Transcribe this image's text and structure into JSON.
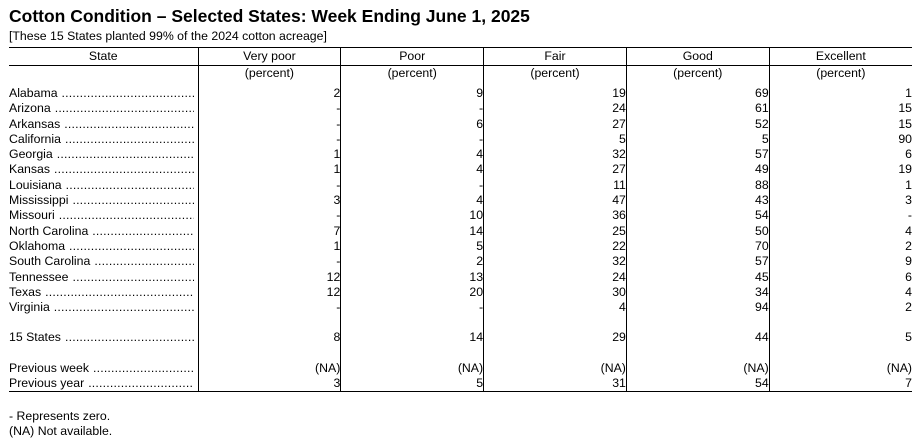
{
  "title": "Cotton Condition – Selected States: Week Ending June 1, 2025",
  "subtitle": "[These 15 States planted 99% of the 2024 cotton acreage]",
  "columns": [
    "State",
    "Very poor",
    "Poor",
    "Fair",
    "Good",
    "Excellent"
  ],
  "unit": "(percent)",
  "states": [
    {
      "name": "Alabama",
      "values": [
        "2",
        "9",
        "19",
        "69",
        "1"
      ]
    },
    {
      "name": "Arizona",
      "values": [
        "-",
        "-",
        "24",
        "61",
        "15"
      ]
    },
    {
      "name": "Arkansas",
      "values": [
        "-",
        "6",
        "27",
        "52",
        "15"
      ]
    },
    {
      "name": "California",
      "values": [
        "-",
        "-",
        "5",
        "5",
        "90"
      ]
    },
    {
      "name": "Georgia",
      "values": [
        "1",
        "4",
        "32",
        "57",
        "6"
      ]
    },
    {
      "name": "Kansas",
      "values": [
        "1",
        "4",
        "27",
        "49",
        "19"
      ]
    },
    {
      "name": "Louisiana",
      "values": [
        "-",
        "-",
        "11",
        "88",
        "1"
      ]
    },
    {
      "name": "Mississippi",
      "values": [
        "3",
        "4",
        "47",
        "43",
        "3"
      ]
    },
    {
      "name": "Missouri",
      "values": [
        "-",
        "10",
        "36",
        "54",
        "-"
      ]
    },
    {
      "name": "North Carolina",
      "values": [
        "7",
        "14",
        "25",
        "50",
        "4"
      ]
    },
    {
      "name": "Oklahoma",
      "values": [
        "1",
        "5",
        "22",
        "70",
        "2"
      ]
    },
    {
      "name": "South Carolina",
      "values": [
        "-",
        "2",
        "32",
        "57",
        "9"
      ]
    },
    {
      "name": "Tennessee",
      "values": [
        "12",
        "13",
        "24",
        "45",
        "6"
      ]
    },
    {
      "name": "Texas",
      "values": [
        "12",
        "20",
        "30",
        "34",
        "4"
      ]
    },
    {
      "name": "Virginia",
      "values": [
        "-",
        "-",
        "4",
        "94",
        "2"
      ]
    }
  ],
  "total": {
    "name": "15 States",
    "values": [
      "8",
      "14",
      "29",
      "44",
      "5"
    ]
  },
  "comparisons": [
    {
      "name": "Previous week",
      "values": [
        "(NA)",
        "(NA)",
        "(NA)",
        "(NA)",
        "(NA)"
      ]
    },
    {
      "name": "Previous year",
      "values": [
        "3",
        "5",
        "31",
        "54",
        "7"
      ]
    }
  ],
  "notes": [
    "- Represents zero.",
    "(NA) Not available."
  ]
}
